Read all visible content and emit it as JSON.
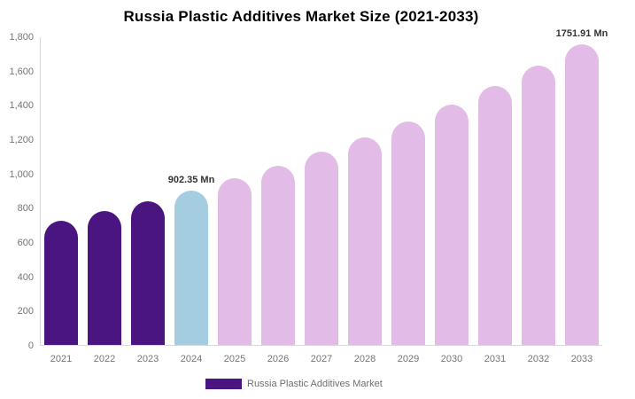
{
  "chart_data": {
    "type": "bar",
    "title": "Russia Plastic Additives Market Size (2021-2033)",
    "categories": [
      "2021",
      "2022",
      "2023",
      "2024",
      "2025",
      "2026",
      "2027",
      "2028",
      "2029",
      "2030",
      "2031",
      "2032",
      "2033"
    ],
    "values": [
      723,
      779,
      838,
      902.35,
      971,
      1046,
      1126,
      1212,
      1305,
      1404,
      1512,
      1628,
      1751.91
    ],
    "unit": "Mn",
    "visible_point_labels": {
      "2024": "902.35 Mn",
      "2033": "1751.91 Mn"
    },
    "yticks": [
      "0",
      "200",
      "400",
      "600",
      "800",
      "1,000",
      "1,200",
      "1,400",
      "1,600",
      "1,800"
    ],
    "ylim": [
      0,
      1800
    ],
    "xlabel": "",
    "ylabel": "",
    "grid": false,
    "segments": [
      "historical",
      "historical",
      "historical",
      "highlight",
      "forecast",
      "forecast",
      "forecast",
      "forecast",
      "forecast",
      "forecast",
      "forecast",
      "forecast",
      "forecast"
    ],
    "colors": {
      "historical": "#4a1580",
      "highlight": "#a4cde2",
      "forecast": "#e3bbe7",
      "axis": "#d9d9d9",
      "tick_text": "#757575",
      "value_label_text": "#333333",
      "legend_swatch": "#4a1580"
    },
    "legend": {
      "position": "bottom",
      "label": "Russia Plastic Additives Market"
    }
  }
}
